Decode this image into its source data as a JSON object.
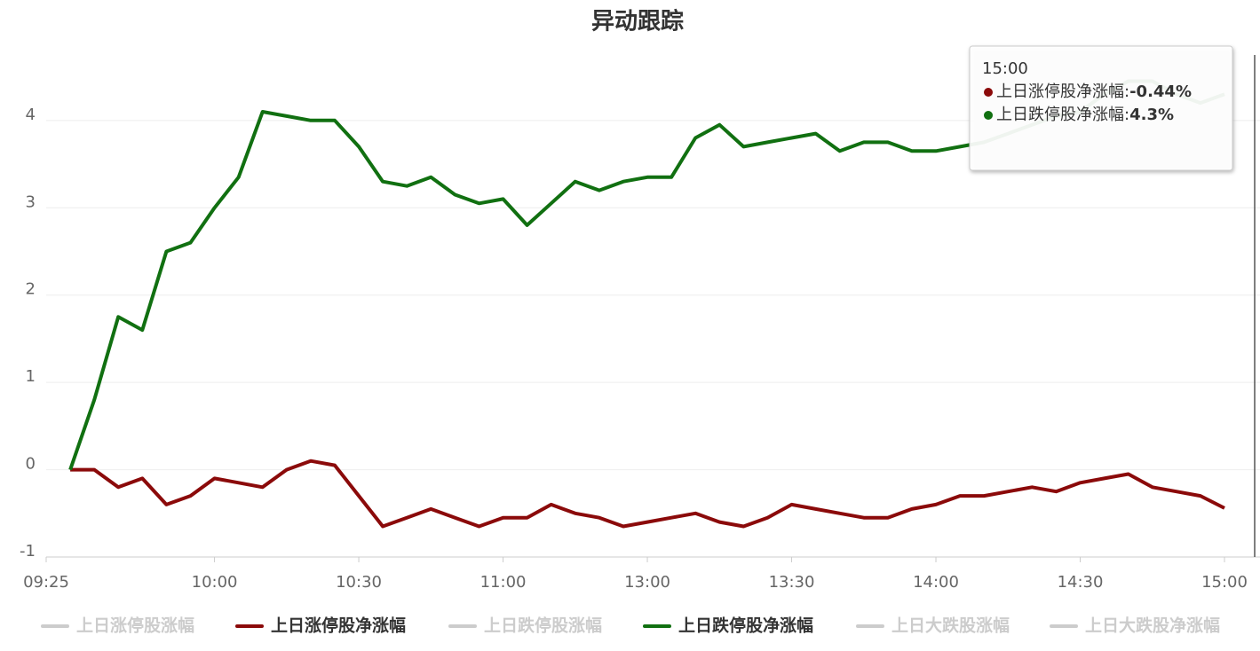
{
  "chart_data": {
    "type": "line",
    "title": "异动跟踪",
    "categories": [
      "09:25",
      null,
      null,
      null,
      null,
      null,
      null,
      "10:00",
      null,
      null,
      null,
      null,
      null,
      "10:30",
      null,
      null,
      null,
      null,
      null,
      "11:00",
      null,
      null,
      null,
      null,
      null,
      "13:00",
      null,
      null,
      null,
      null,
      null,
      "13:30",
      null,
      null,
      null,
      null,
      null,
      "14:00",
      null,
      null,
      null,
      null,
      null,
      "14:30",
      null,
      null,
      null,
      null,
      null,
      "15:00"
    ],
    "series": [
      {
        "name": "上日涨停股涨幅",
        "color": "#cccccc",
        "visible": false
      },
      {
        "name": "上日涨停股净涨幅",
        "color": "#8b0a0a",
        "visible": true,
        "values": [
          null,
          0,
          0,
          -0.2,
          -0.1,
          -0.4,
          -0.3,
          -0.1,
          -0.15,
          -0.2,
          0,
          0.1,
          0.05,
          -0.3,
          -0.65,
          -0.55,
          -0.45,
          -0.55,
          -0.65,
          -0.55,
          -0.55,
          -0.4,
          -0.5,
          -0.55,
          -0.65,
          -0.6,
          -0.55,
          -0.5,
          -0.6,
          -0.65,
          -0.55,
          -0.4,
          -0.45,
          -0.5,
          -0.55,
          -0.55,
          -0.45,
          -0.4,
          -0.3,
          -0.3,
          -0.25,
          -0.2,
          -0.25,
          -0.15,
          -0.1,
          -0.05,
          -0.2,
          -0.25,
          -0.3,
          -0.44
        ]
      },
      {
        "name": "上日跌停股涨幅",
        "color": "#cccccc",
        "visible": false
      },
      {
        "name": "上日跌停股净涨幅",
        "color": "#117011",
        "visible": true,
        "values": [
          null,
          0,
          0.8,
          1.75,
          1.6,
          2.5,
          2.6,
          3.0,
          3.35,
          4.1,
          4.05,
          4.0,
          4.0,
          3.7,
          3.3,
          3.25,
          3.35,
          3.15,
          3.05,
          3.1,
          2.8,
          3.05,
          3.3,
          3.2,
          3.3,
          3.35,
          3.35,
          3.8,
          3.95,
          3.7,
          3.75,
          3.8,
          3.85,
          3.65,
          3.75,
          3.75,
          3.65,
          3.65,
          3.7,
          3.75,
          3.85,
          3.95,
          4.05,
          4.1,
          4.3,
          4.45,
          4.45,
          4.3,
          4.2,
          4.3
        ]
      },
      {
        "name": "上日大跌股涨幅",
        "color": "#cccccc",
        "visible": false
      },
      {
        "name": "上日大跌股净涨幅",
        "color": "#cccccc",
        "visible": false
      }
    ],
    "ylim": [
      -1,
      4.75
    ],
    "yticks": [
      -1,
      0,
      1,
      2,
      3,
      4
    ],
    "grid": true,
    "tooltip": {
      "title": "15:00",
      "items": [
        {
          "label": "上日涨停股净涨幅:",
          "value": "-0.44%"
        },
        {
          "label": "上日跌停股净涨幅:",
          "value": "4.3%"
        }
      ]
    }
  }
}
